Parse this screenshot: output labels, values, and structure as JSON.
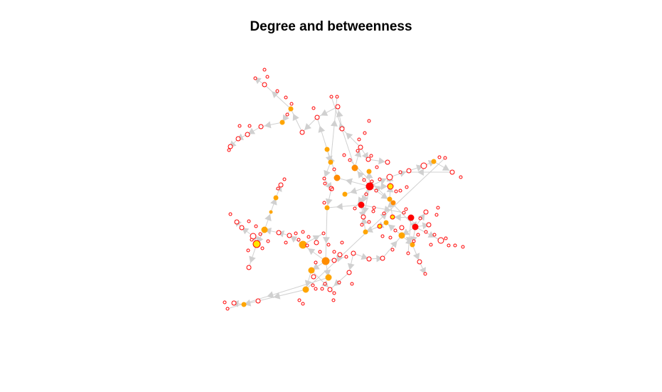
{
  "title": "Degree and betweenness",
  "colors": {
    "edge": "#d0d0d0",
    "node_border": "#ff0000",
    "high_betweenness": "#ff0000",
    "mid_betweenness": "#ff8c00",
    "low_betweenness": "#ffa500",
    "lowest_betweenness": "#ffe600",
    "zero_betweenness": "#ffffff"
  }
}
